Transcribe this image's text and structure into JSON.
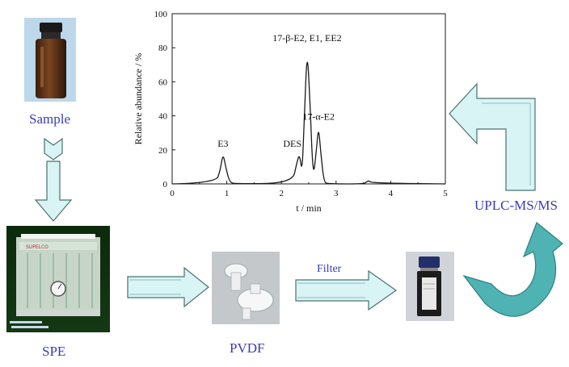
{
  "labels": {
    "sample": "Sample",
    "spe": "SPE",
    "pvdf": "PVDF",
    "filter": "Filter",
    "uplc": "UPLC-MS/MS"
  },
  "colors": {
    "label_text": "#3a3ab8",
    "arrow_fill": "#d8f4f4",
    "arrow_stroke": "#4a7070",
    "curved_arrow_fill": "#4fb3b3"
  },
  "chart_data": {
    "type": "line",
    "xlabel": "t / min",
    "ylabel": "Relative abundance / %",
    "xlim": [
      0,
      5
    ],
    "ylim": [
      0,
      100
    ],
    "x_ticks": [
      "0",
      "1",
      "2",
      "3",
      "4",
      "5"
    ],
    "y_ticks": [
      "0",
      "20",
      "40",
      "60",
      "80",
      "100"
    ],
    "grid": false,
    "series": [
      {
        "x": [
          0,
          0.8,
          0.88,
          0.93,
          0.98,
          1.05,
          1.15,
          2.2,
          2.28,
          2.33,
          2.38,
          2.42,
          2.47,
          2.52,
          2.58,
          2.64,
          2.68,
          2.72,
          2.78,
          2.85,
          3.5,
          3.55,
          3.6,
          3.65,
          5
        ],
        "y": [
          0,
          0.5,
          8,
          18,
          10,
          1,
          0,
          0.5,
          12,
          18,
          6,
          40,
          80,
          50,
          2,
          20,
          34,
          18,
          1,
          0,
          0,
          1,
          2,
          0.5,
          0
        ]
      }
    ],
    "annotations": [
      {
        "text": "E3",
        "x": 0.93,
        "y": 18
      },
      {
        "text": "DES",
        "x": 2.2,
        "y": 18
      },
      {
        "text": "17-β-E2, E1, EE2",
        "x": 2.47,
        "y": 80
      },
      {
        "text": "17-α-E2",
        "x": 2.68,
        "y": 34
      }
    ]
  }
}
